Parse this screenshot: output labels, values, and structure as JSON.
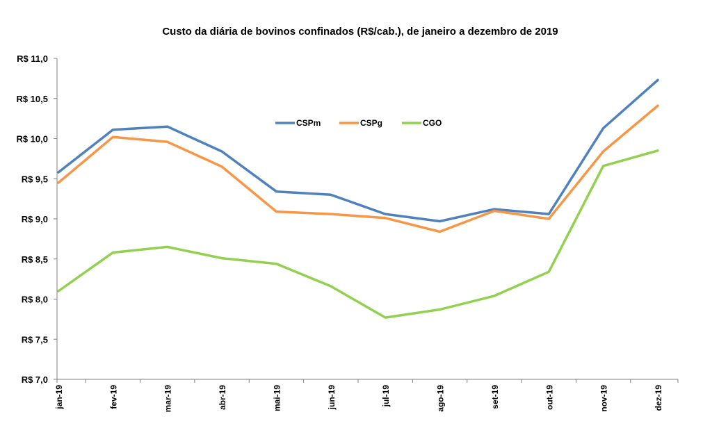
{
  "chart_data": {
    "type": "line",
    "title": "Custo da diária de bovinos confinados (R$/cab.), de  janeiro a dezembro de 2019",
    "xlabel": "",
    "ylabel": "",
    "categories": [
      "jan-19",
      "fev-19",
      "mar-19",
      "abr-19",
      "mai-19",
      "jun-19",
      "jul-19",
      "ago-19",
      "set-19",
      "out-19",
      "nov-19",
      "dez-19"
    ],
    "ylim": [
      7.0,
      11.0
    ],
    "yticks": [
      7.0,
      7.5,
      8.0,
      8.5,
      9.0,
      9.5,
      10.0,
      10.5,
      11.0
    ],
    "ytick_labels": [
      "R$ 7,0",
      "R$ 7,5",
      "R$ 8,0",
      "R$ 8,5",
      "R$ 9,0",
      "R$ 9,5",
      "R$ 10,0",
      "R$ 10,5",
      "R$ 11,0"
    ],
    "grid": false,
    "legend_position": "top-center",
    "series": [
      {
        "name": "CSPm",
        "color": "#4F81BD",
        "values": [
          9.58,
          10.11,
          10.15,
          9.84,
          9.34,
          9.3,
          9.06,
          8.97,
          9.12,
          9.06,
          10.13,
          10.73
        ]
      },
      {
        "name": "CSPg",
        "color": "#F79646",
        "values": [
          9.45,
          10.02,
          9.96,
          9.65,
          9.09,
          9.06,
          9.01,
          8.84,
          9.1,
          9.0,
          9.84,
          10.41
        ]
      },
      {
        "name": "CGO",
        "color": "#92D050",
        "values": [
          8.1,
          8.58,
          8.65,
          8.51,
          8.44,
          8.16,
          7.77,
          7.87,
          8.04,
          8.34,
          9.66,
          9.85
        ]
      }
    ]
  }
}
